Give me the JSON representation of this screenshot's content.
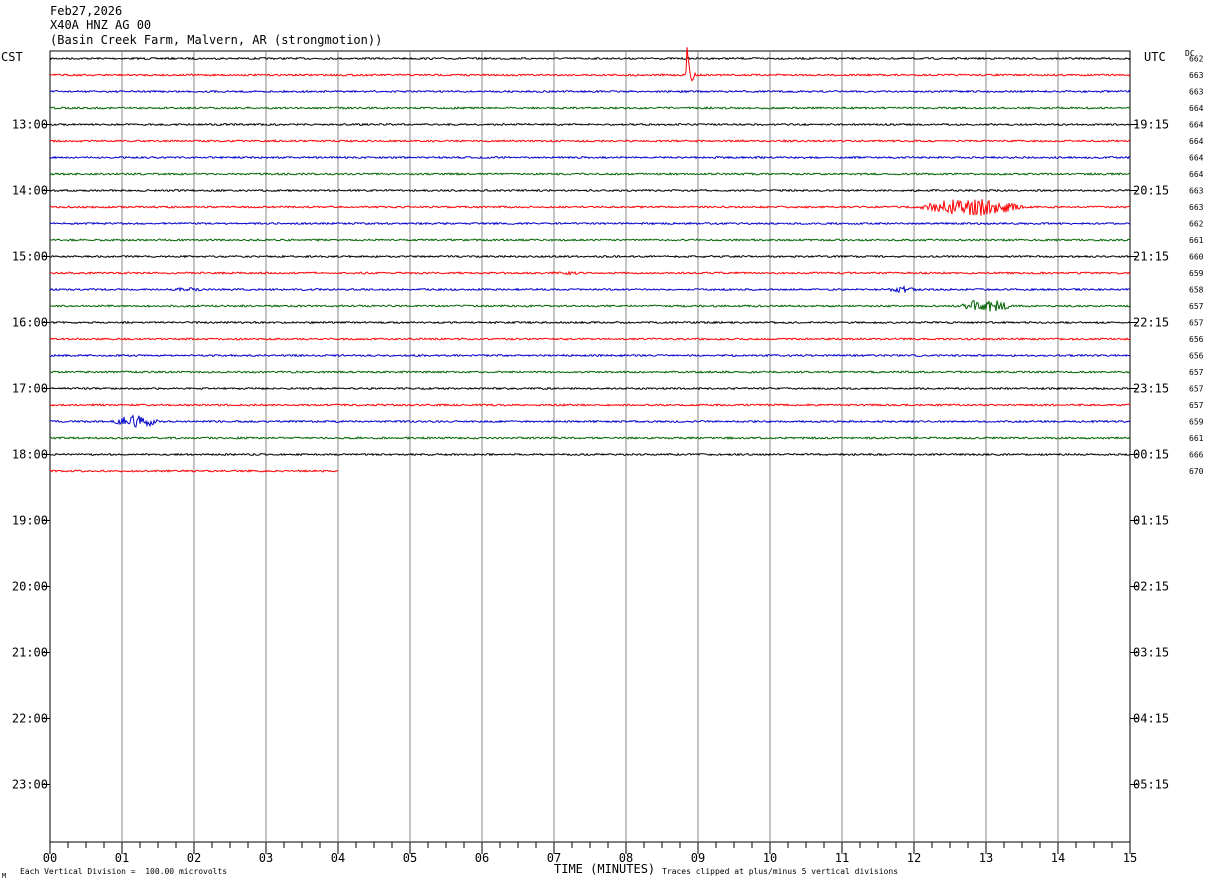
{
  "header": {
    "date": "Feb27,2026",
    "station": "X40A HNZ AG 00",
    "site": "(Basin Creek Farm, Malvern, AR (strongmotion))"
  },
  "axis_labels": {
    "left_zone": "CST",
    "right_zone": "UTC",
    "dc": "DC"
  },
  "footer": {
    "scale": "Each Vertical Division =  100.00 microvolts",
    "xlabel": "TIME (MINUTES)",
    "clip": "Traces clipped at plus/minus 5 vertical divisions",
    "mark": "M"
  },
  "chart_data": {
    "type": "line",
    "x_ticks": [
      "00",
      "01",
      "02",
      "03",
      "04",
      "05",
      "06",
      "07",
      "08",
      "09",
      "10",
      "11",
      "12",
      "13",
      "14",
      "15"
    ],
    "xlim": [
      0,
      15
    ],
    "left_hours": [
      "13:00",
      "14:00",
      "15:00",
      "16:00",
      "17:00",
      "18:00",
      "19:00",
      "20:00",
      "21:00",
      "22:00",
      "23:00"
    ],
    "right_hours": [
      "19:15",
      "20:15",
      "21:15",
      "22:15",
      "23:15",
      "00:15",
      "01:15",
      "02:15",
      "03:15",
      "04:15",
      "05:15"
    ],
    "trace_colors": [
      "#000000",
      "#ff0000",
      "#0000cc",
      "#006400"
    ],
    "dc_values": [
      "662",
      "663",
      "663",
      "664",
      "664",
      "664",
      "664",
      "664",
      "663",
      "663",
      "662",
      "661",
      "660",
      "659",
      "658",
      "657",
      "657",
      "656",
      "656",
      "657",
      "657",
      "657",
      "659",
      "661",
      "666",
      "670"
    ],
    "last_trace_end_minute": 4,
    "events": [
      {
        "trace": 1,
        "minute": 8.82,
        "duration": 0.4,
        "amplitude": 52,
        "kind": "spike"
      },
      {
        "trace": 9,
        "minute": 12.0,
        "duration": 1.6,
        "amplitude": 9,
        "kind": "burst"
      },
      {
        "trace": 13,
        "minute": 7.0,
        "duration": 0.4,
        "amplitude": 2,
        "kind": "burst"
      },
      {
        "trace": 14,
        "minute": 1.6,
        "duration": 0.6,
        "amplitude": 2,
        "kind": "burst"
      },
      {
        "trace": 14,
        "minute": 11.6,
        "duration": 0.5,
        "amplitude": 3,
        "kind": "burst"
      },
      {
        "trace": 15,
        "minute": 12.6,
        "duration": 0.8,
        "amplitude": 7,
        "kind": "burst"
      },
      {
        "trace": 22,
        "minute": 0.8,
        "duration": 0.8,
        "amplitude": 6,
        "kind": "burst"
      }
    ]
  }
}
